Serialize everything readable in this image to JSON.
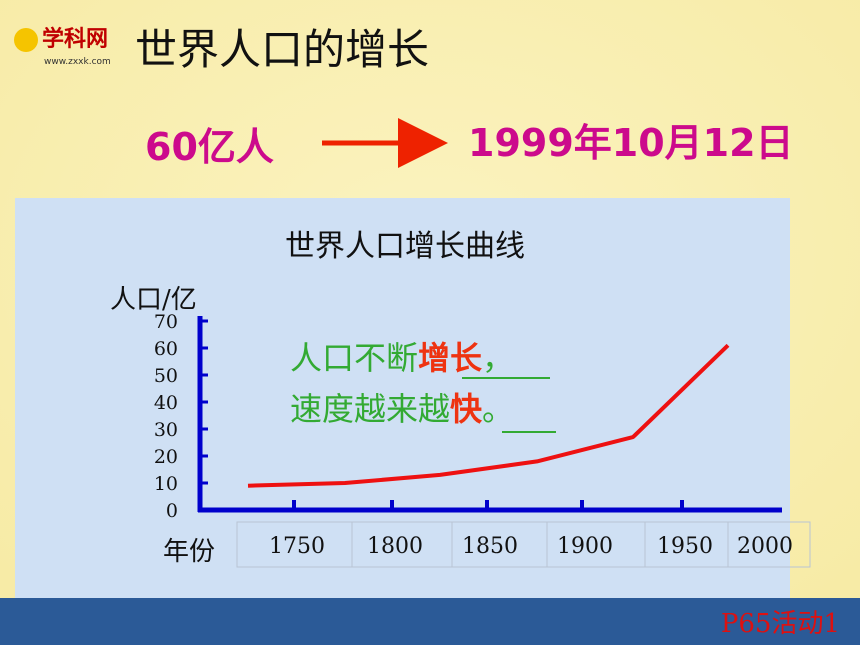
{
  "logo": {
    "name": "学科网",
    "url": "www.zxxk.com"
  },
  "header": {
    "title": "世界人口的增长"
  },
  "fact": {
    "amount": "60亿人",
    "date": "1999年10月12日"
  },
  "note": {
    "line1": [
      "人口不断",
      "增长",
      "，"
    ],
    "line2": [
      "速度越来越",
      "快",
      "。"
    ]
  },
  "footer": {
    "activity": "P65活动1"
  },
  "chart_data": {
    "type": "line",
    "title": "世界人口增长曲线",
    "y_label": "人口/亿",
    "x_label": "年份",
    "categories": [
      "1750",
      "1800",
      "1850",
      "1900",
      "1950",
      "2000"
    ],
    "series": [
      {
        "name": "世界人口",
        "color": "#ee1111",
        "values": [
          9,
          10,
          13,
          18,
          27,
          61
        ]
      }
    ],
    "ylim": [
      0,
      70
    ],
    "yticks": [
      0,
      10,
      20,
      30,
      40,
      50,
      60,
      70
    ]
  }
}
